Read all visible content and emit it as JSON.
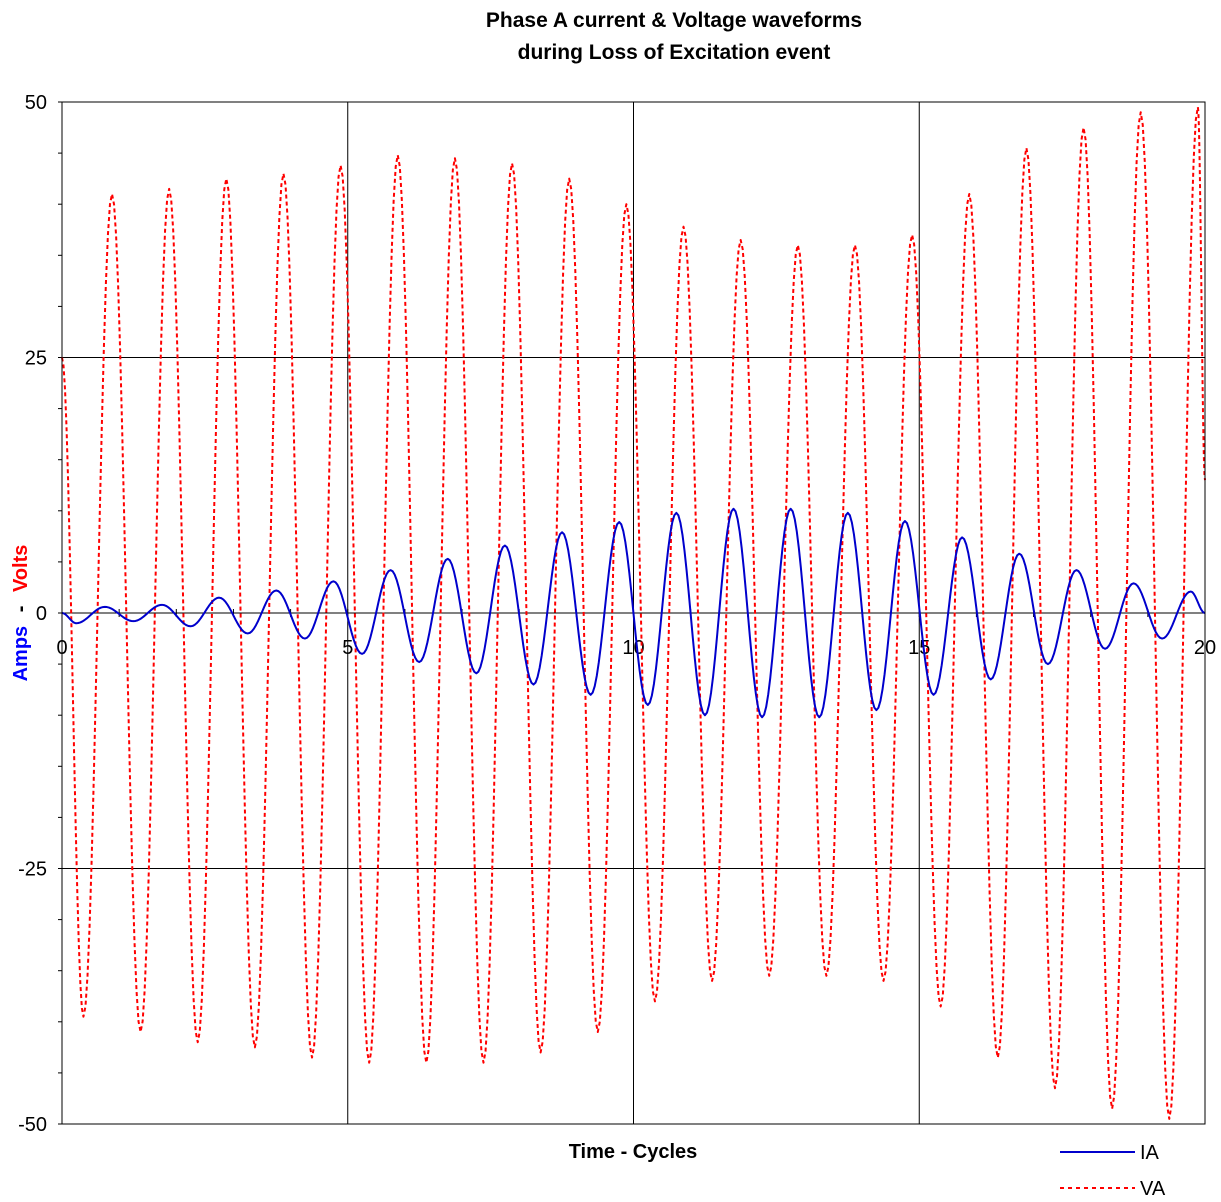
{
  "chart_data": {
    "type": "line",
    "title_line1": "Phase A current & Voltage waveforms",
    "title_line2": "during Loss of Excitation event",
    "xlabel": "Time - Cycles",
    "ylabel_amps": "Amps",
    "ylabel_sep": "-",
    "ylabel_volts": "Volts",
    "xlim": [
      0,
      20
    ],
    "ylim": [
      -50,
      50
    ],
    "x_ticks": [
      0,
      5,
      10,
      15,
      20
    ],
    "x_tick_labels": [
      "0",
      "5",
      "10",
      "15",
      "20"
    ],
    "y_ticks": [
      50,
      25,
      0,
      -25,
      -50
    ],
    "y_tick_labels": [
      "50",
      "25",
      "0",
      "-25",
      "-50"
    ],
    "grid": true,
    "legend_position": "bottom-right",
    "colors": {
      "IA": "#0000cc",
      "VA": "#ff0000",
      "axis": "#000000",
      "ylabel_amps": "#0000ff",
      "ylabel_volts": "#ff0000"
    },
    "series": [
      {
        "name": "IA",
        "style": "solid",
        "x": [
          0.0,
          0.25,
          0.75,
          1.25,
          1.75,
          2.25,
          2.75,
          3.25,
          3.75,
          4.25,
          4.75,
          5.25,
          5.75,
          6.25,
          6.75,
          7.25,
          7.75,
          8.25,
          8.75,
          9.25,
          9.75,
          10.25,
          10.75,
          11.25,
          11.75,
          12.25,
          12.75,
          13.25,
          13.75,
          14.25,
          14.75,
          15.25,
          15.75,
          16.25,
          16.75,
          17.25,
          17.75,
          18.25,
          18.75,
          19.25,
          19.75,
          20.0
        ],
        "y": [
          0.0,
          -1.0,
          0.6,
          -0.8,
          0.8,
          -1.3,
          1.5,
          -2.0,
          2.2,
          -2.5,
          3.1,
          -4.0,
          4.2,
          -4.8,
          5.3,
          -5.9,
          6.6,
          -7.0,
          7.9,
          -8.0,
          8.9,
          -9.0,
          9.8,
          -10.0,
          10.2,
          -10.2,
          10.2,
          -10.2,
          9.8,
          -9.5,
          9.0,
          -8.0,
          7.4,
          -6.5,
          5.8,
          -5.0,
          4.2,
          -3.5,
          2.9,
          -2.5,
          2.1,
          0.0
        ]
      },
      {
        "name": "VA",
        "style": "dashed",
        "x": [
          0.0,
          0.375,
          0.875,
          1.375,
          1.875,
          2.375,
          2.875,
          3.375,
          3.875,
          4.375,
          4.875,
          5.375,
          5.875,
          6.375,
          6.875,
          7.375,
          7.875,
          8.375,
          8.875,
          9.375,
          9.875,
          10.375,
          10.875,
          11.375,
          11.875,
          12.375,
          12.875,
          13.375,
          13.875,
          14.375,
          14.875,
          15.375,
          15.875,
          16.375,
          16.875,
          17.375,
          17.875,
          18.375,
          18.875,
          19.375,
          19.875,
          20.0
        ],
        "y": [
          25.0,
          -39.5,
          41.0,
          -41.0,
          41.5,
          -42.0,
          42.5,
          -42.5,
          43.0,
          -43.5,
          43.8,
          -44.0,
          44.8,
          -44.0,
          44.5,
          -44.0,
          44.0,
          -43.0,
          42.5,
          -41.0,
          40.0,
          -38.0,
          37.8,
          -36.0,
          36.5,
          -35.5,
          36.0,
          -35.5,
          36.0,
          -36.0,
          37.0,
          -38.5,
          41.0,
          -43.5,
          45.5,
          -46.5,
          47.5,
          -48.5,
          49.0,
          -49.5,
          49.5,
          13.0
        ]
      }
    ]
  }
}
